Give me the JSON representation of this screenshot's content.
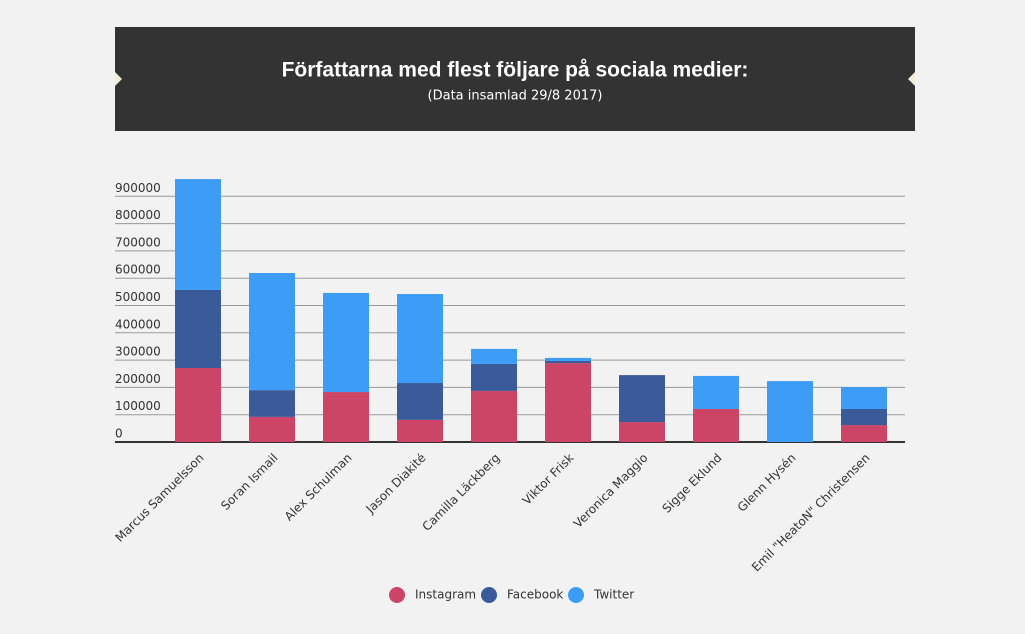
{
  "chart_data": {
    "type": "bar",
    "stacked": true,
    "title": "Författarna med flest följare på sociala medier:",
    "subtitle": "(Data insamlad 29/8 2017)",
    "categories": [
      "Marcus Samuelsson",
      "Soran Ismail",
      "Alex Schulman",
      "Jason Diakité",
      "Camilla Läckberg",
      "Viktor Frisk",
      "Veronica Maggio",
      "Sigge Eklund",
      "Glenn Hysén",
      "Emil \"HeatoN\" Christensen"
    ],
    "series": [
      {
        "name": "Instagram",
        "color": "#cc4466",
        "values": [
          271000,
          92000,
          183000,
          81000,
          187000,
          289000,
          73000,
          121000,
          0,
          62000
        ]
      },
      {
        "name": "Facebook",
        "color": "#3b5a9a",
        "values": [
          286000,
          98000,
          0,
          135000,
          99000,
          8000,
          172000,
          0,
          0,
          59000
        ]
      },
      {
        "name": "Twitter",
        "color": "#3d9cf5",
        "values": [
          406000,
          429000,
          363000,
          326000,
          55000,
          11000,
          0,
          121000,
          223000,
          80000
        ]
      }
    ],
    "ylim": [
      0,
      1000000
    ],
    "yticks": [
      0,
      100000,
      200000,
      300000,
      400000,
      500000,
      600000,
      700000,
      800000,
      900000
    ],
    "grid": true,
    "legend": "bottom"
  }
}
